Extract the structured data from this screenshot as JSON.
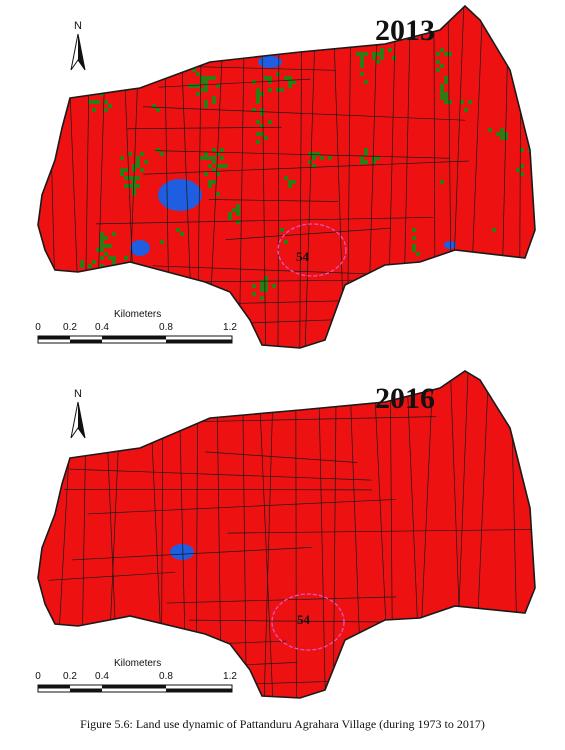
{
  "maps": [
    {
      "year": "2013",
      "plot_label": "54",
      "north_label": "N",
      "scale": {
        "title": "Kilometers",
        "ticks": [
          "0",
          "0.2",
          "0.4",
          "0.8",
          "1.2"
        ]
      },
      "colors": {
        "built": "#ee1111",
        "agri": "#2f7d12",
        "open": "#f2ef1e",
        "water": "#1f5ee0",
        "boundary": "#1a1a1a",
        "highlight": "#e055c8"
      }
    },
    {
      "year": "2016",
      "plot_label": "54",
      "north_label": "N",
      "scale": {
        "title": "Kilometers",
        "ticks": [
          "0",
          "0.2",
          "0.4",
          "0.8",
          "1.2"
        ]
      },
      "colors": {
        "built": "#ee1111",
        "agri": "#2f7d12",
        "open": "#f2ef1e",
        "water": "#1f5ee0",
        "boundary": "#1a1a1a",
        "highlight": "#e055c8"
      }
    }
  ],
  "caption": "Figure 5.6: Land use dynamic of Pattanduru Agrahara Village (during 1973 to 2017)"
}
